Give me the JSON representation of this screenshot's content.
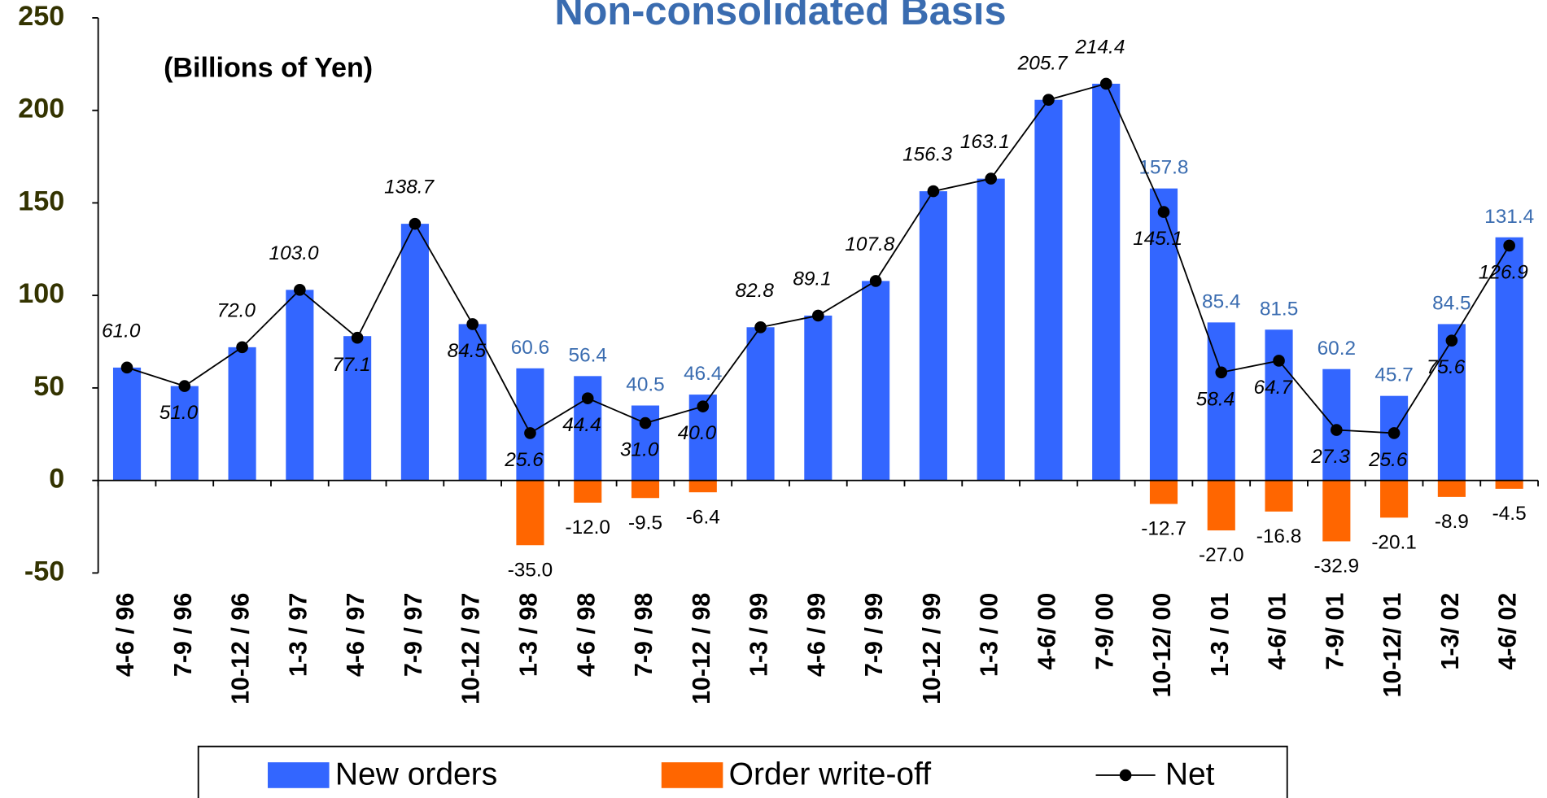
{
  "chart_data": {
    "type": "bar_line",
    "title": "Non-consolidated Basis",
    "annotation": "(Billions of Yen)",
    "categories": [
      "4-6 / 96",
      "7-9 / 96",
      "10-12 / 96",
      "1-3 / 97",
      "4-6 / 97",
      "7-9 / 97",
      "10-12 / 97",
      "1-3 / 98",
      "4-6 / 98",
      "7-9 / 98",
      "10-12 / 98",
      "1-3 / 99",
      "4-6  / 99",
      "7-9 / 99",
      "10-12 / 99",
      "1-3 / 00",
      "4-6/ 00",
      "7-9/ 00",
      "10-12/ 00",
      "1-3 / 01",
      "4-6/ 01",
      "7-9/ 01",
      "10-12/ 01",
      "1-3/ 02",
      "4-6/ 02"
    ],
    "series": [
      {
        "name": "New orders",
        "color": "#3366ff",
        "kind": "bar",
        "values": [
          61.0,
          51.0,
          72.0,
          103.0,
          78.0,
          138.7,
          84.5,
          60.6,
          56.4,
          40.5,
          46.4,
          82.8,
          89.1,
          107.8,
          156.3,
          163.1,
          205.7,
          214.4,
          157.8,
          85.4,
          81.5,
          60.2,
          45.7,
          84.5,
          131.4
        ],
        "value_labels": [
          null,
          null,
          null,
          null,
          null,
          null,
          null,
          "60.6",
          "56.4",
          "40.5",
          "46.4",
          null,
          null,
          null,
          null,
          null,
          null,
          null,
          "157.8",
          "85.4",
          "81.5",
          "60.2",
          "45.7",
          "84.5",
          "131.4"
        ]
      },
      {
        "name": "Order write-off",
        "color": "#ff6600",
        "kind": "bar",
        "values": [
          null,
          null,
          null,
          null,
          null,
          null,
          null,
          -35.0,
          -12.0,
          -9.5,
          -6.4,
          null,
          null,
          null,
          null,
          null,
          null,
          null,
          -12.7,
          -27.0,
          -16.8,
          -32.9,
          -20.1,
          -8.9,
          -4.5
        ],
        "value_labels": [
          null,
          null,
          null,
          null,
          null,
          null,
          null,
          "-35.0",
          "-12.0",
          "-9.5",
          "-6.4",
          null,
          null,
          null,
          null,
          null,
          null,
          null,
          "-12.7",
          "-27.0",
          "-16.8",
          "-32.9",
          "-20.1",
          "-8.9",
          "-4.5"
        ]
      },
      {
        "name": "Net",
        "color": "#000000",
        "kind": "line",
        "values": [
          61.0,
          51.0,
          72.0,
          103.0,
          77.1,
          138.7,
          84.5,
          25.6,
          44.4,
          31.0,
          40.0,
          82.8,
          89.1,
          107.8,
          156.3,
          163.1,
          205.7,
          214.4,
          145.1,
          58.4,
          64.7,
          27.3,
          25.6,
          75.6,
          126.9
        ],
        "value_labels": [
          "61.0",
          "51.0",
          "72.0",
          "103.0",
          "77.1",
          "138.7",
          "84.5",
          "25.6",
          "44.4",
          "31.0",
          "40.0",
          "82.8",
          "89.1",
          "107.8",
          "156.3",
          "163.1",
          "205.7",
          "214.4",
          "145.1",
          "58.4",
          "64.7",
          "27.3",
          "25.6",
          "75.6",
          "126.9"
        ]
      }
    ],
    "ylim": [
      -50,
      250
    ],
    "yticks": [
      -50,
      0,
      50,
      100,
      150,
      200,
      250
    ]
  }
}
